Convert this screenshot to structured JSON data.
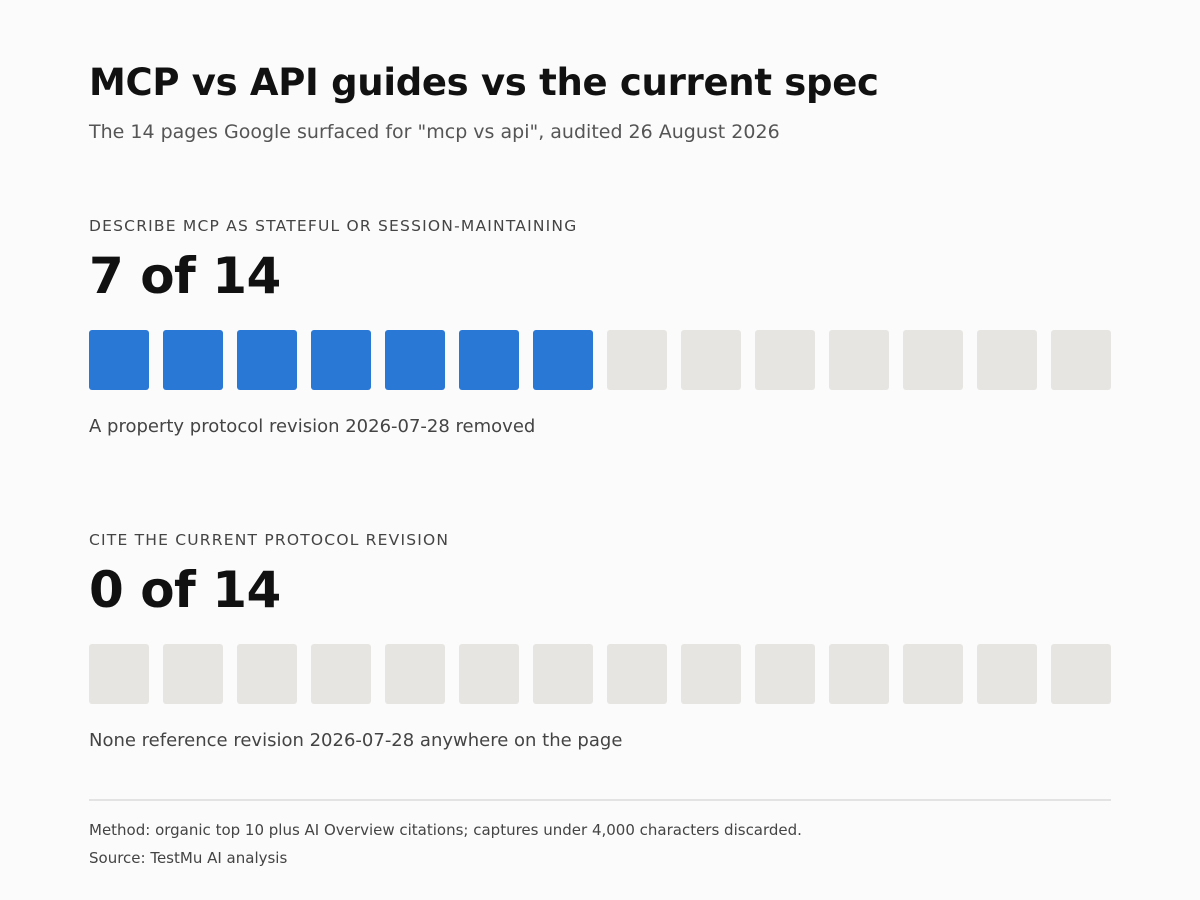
{
  "title": "MCP vs API guides vs the current spec",
  "subtitle": "The 14 pages Google surfaced for \"mcp vs api\", audited 26 August 2026",
  "colors": {
    "filled": "#2a78d6",
    "empty": "#e6e5e1"
  },
  "chart_data": [
    {
      "type": "waffle",
      "label": "DESCRIBE MCP AS STATEFUL OR SESSION-MAINTAINING",
      "value_text": "7 of 14",
      "count": 7,
      "total": 14,
      "note": "A property protocol revision 2026-07-28 removed"
    },
    {
      "type": "waffle",
      "label": "CITE THE CURRENT PROTOCOL REVISION",
      "value_text": "0 of 14",
      "count": 0,
      "total": 14,
      "note": "None reference revision 2026-07-28 anywhere on the page"
    }
  ],
  "footer": {
    "method": "Method: organic top 10 plus AI Overview citations; captures under 4,000 characters discarded.",
    "source": "Source: TestMu AI analysis"
  }
}
